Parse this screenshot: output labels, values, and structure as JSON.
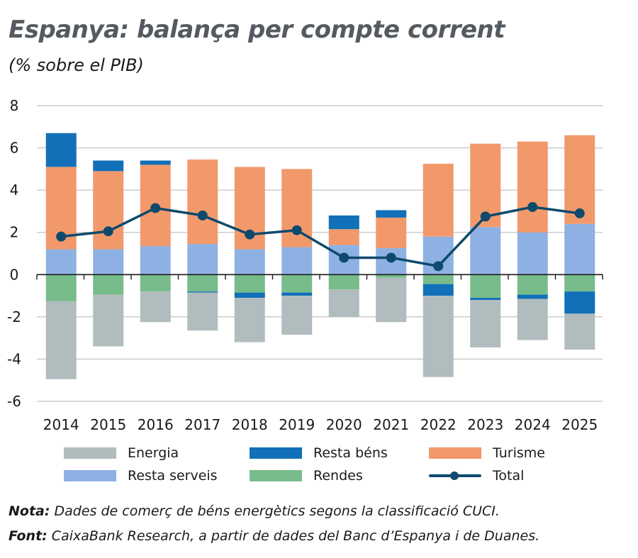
{
  "header": {
    "title": "Espanya: balança per compte corrent",
    "subtitle": "(% sobre el PIB)"
  },
  "chart_data": {
    "type": "bar",
    "stacked": true,
    "categories": [
      "2014",
      "2015",
      "2016",
      "2017",
      "2018",
      "2019",
      "2020",
      "2021",
      "2022",
      "2023",
      "2024",
      "2025"
    ],
    "ylim": [
      -6,
      8
    ],
    "yticks": [
      8,
      6,
      4,
      2,
      0,
      -2,
      -4,
      -6
    ],
    "grid": true,
    "legend_position": "bottom",
    "series": [
      {
        "name": "Resta serveis",
        "color": "#8eb1e3",
        "sign": "positive",
        "values": [
          1.2,
          1.2,
          1.35,
          1.45,
          1.2,
          1.3,
          1.4,
          1.25,
          1.8,
          2.25,
          2.0,
          2.4
        ]
      },
      {
        "name": "Turisme",
        "color": "#f2996b",
        "sign": "positive",
        "values": [
          3.9,
          3.7,
          3.85,
          4.0,
          3.9,
          3.7,
          0.75,
          1.45,
          3.45,
          3.95,
          4.3,
          4.2
        ]
      },
      {
        "name": "Resta béns",
        "color": "#1170b8",
        "sign": "positive",
        "values": [
          1.6,
          0.5,
          0.2,
          0,
          0,
          0,
          0.65,
          0.35,
          0,
          0,
          0,
          0
        ]
      },
      {
        "name": "Rendes",
        "color": "#77bc8a",
        "sign": "negative",
        "values": [
          -1.25,
          -0.95,
          -0.8,
          -0.8,
          -0.85,
          -0.85,
          -0.7,
          -0.15,
          -0.45,
          -1.1,
          -0.95,
          -0.8
        ]
      },
      {
        "name": "Resta béns",
        "color": "#1170b8",
        "sign": "negative",
        "values": [
          0,
          0,
          0,
          -0.05,
          -0.25,
          -0.15,
          0,
          0,
          -0.55,
          -0.1,
          -0.2,
          -1.05
        ]
      },
      {
        "name": "Energia",
        "color": "#b1bcbe",
        "sign": "negative",
        "values": [
          -3.7,
          -2.45,
          -1.45,
          -1.8,
          -2.1,
          -1.85,
          -1.3,
          -2.1,
          -3.85,
          -2.25,
          -1.95,
          -1.7
        ]
      }
    ],
    "line": {
      "name": "Total",
      "color": "#0e4a6c",
      "values": [
        1.8,
        2.05,
        3.15,
        2.8,
        1.9,
        2.1,
        0.8,
        0.8,
        0.4,
        2.75,
        3.2,
        2.9
      ]
    }
  },
  "legend": {
    "energia": "Energia",
    "resta_bens": "Resta béns",
    "turisme": "Turisme",
    "resta_serveis": "Resta serveis",
    "rendes": "Rendes",
    "total": "Total"
  },
  "colors": {
    "energia": "#b1bcbe",
    "resta_bens": "#1170b8",
    "turisme": "#f2996b",
    "resta_serveis": "#8eb1e3",
    "rendes": "#77bc8a",
    "total": "#0e4a6c"
  },
  "footer": {
    "note_label": "Nota:",
    "note_text": " Dades de comerç de béns energètics segons la classificació CUCI.",
    "source_label": "Font:",
    "source_text": " CaixaBank Research, a partir de dades del Banc d’Espanya i de Duanes."
  }
}
